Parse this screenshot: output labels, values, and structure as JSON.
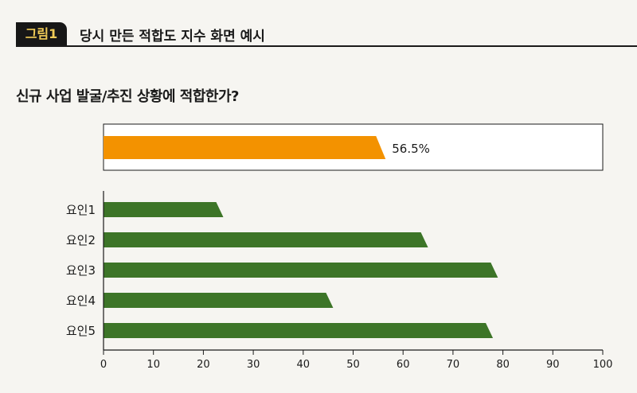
{
  "figure": {
    "tag": "그림1",
    "title": "당시 만든 적합도 지수 화면 예시"
  },
  "question": "신규 사업 발굴/추진 상황에 적합한가?",
  "colors": {
    "overall_bar": "#f39200",
    "factor_bar": "#3d7528",
    "tag_text": "#f1cc57"
  },
  "chart_data": [
    {
      "type": "bar",
      "orientation": "horizontal",
      "categories": [
        ""
      ],
      "values": [
        56.5
      ],
      "data_labels": [
        "56.5%"
      ],
      "xlim": [
        0,
        100
      ]
    },
    {
      "type": "bar",
      "orientation": "horizontal",
      "categories": [
        "요인1",
        "요인2",
        "요인3",
        "요인4",
        "요인5"
      ],
      "values": [
        24,
        65,
        79,
        46,
        78
      ],
      "xlim": [
        0,
        100
      ],
      "xticks": [
        "0",
        "10",
        "20",
        "30",
        "40",
        "50",
        "60",
        "70",
        "80",
        "90",
        "100"
      ],
      "xlabel": "",
      "ylabel": "",
      "grid": false
    }
  ]
}
